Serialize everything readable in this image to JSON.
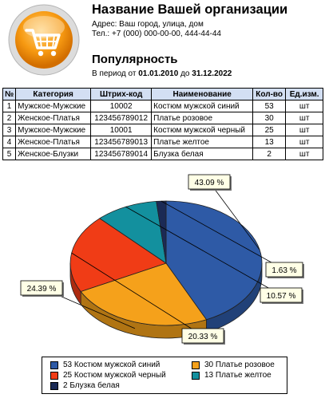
{
  "header": {
    "org_name": "Название Вашей организации",
    "address": "Адрес: Ваш город, улица, дом",
    "phone": "Тел.: +7 (000) 000-00-00, 444-44-44"
  },
  "report": {
    "title": "Популярность",
    "period_prefix": "В период от",
    "date_from": "01.01.2010",
    "period_mid": "до",
    "date_to": "31.12.2022"
  },
  "table": {
    "columns": [
      "№",
      "Категория",
      "Штрих-код",
      "Наименование",
      "Кол-во",
      "Ед.изм."
    ],
    "rows": [
      [
        "1",
        "Мужское-Мужские",
        "10002",
        "Костюм мужской синий",
        "53",
        "шт"
      ],
      [
        "2",
        "Женское-Платья",
        "123456789012",
        "Платье розовое",
        "30",
        "шт"
      ],
      [
        "3",
        "Мужское-Мужские",
        "10001",
        "Костюм мужской черный",
        "25",
        "шт"
      ],
      [
        "4",
        "Женское-Платья",
        "123456789013",
        "Платье желтое",
        "13",
        "шт"
      ],
      [
        "5",
        "Женское-Блузки",
        "123456789014",
        "Блузка белая",
        "2",
        "шт"
      ]
    ]
  },
  "chart_data": {
    "type": "pie",
    "categories": [
      "53 Костюм мужской синий",
      "30 Платье розовое",
      "25 Костюм мужской черный",
      "13 Платье желтое",
      "2 Блузка белая"
    ],
    "values": [
      53,
      30,
      25,
      13,
      2
    ],
    "labels": [
      "43.09 %",
      "24.39 %",
      "20.33 %",
      "10.57 %",
      "1.63 %"
    ],
    "colors": [
      "#2e5aa6",
      "#f5a11b",
      "#f03c16",
      "#13909e",
      "#1b2a55"
    ],
    "legend_position": "bottom"
  }
}
